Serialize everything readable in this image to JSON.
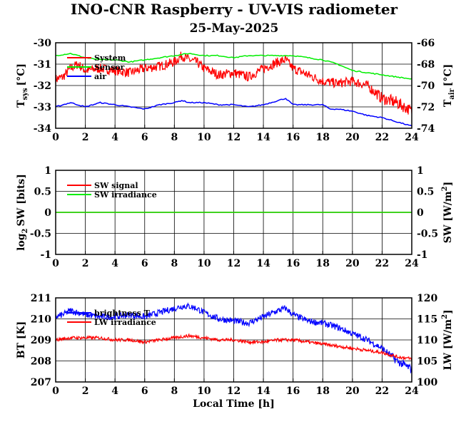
{
  "title": "INO-CNR Raspberry - UV-VIS radiometer",
  "subtitle": "25-May-2025",
  "chart_data": [
    {
      "type": "line",
      "panel": "temperature",
      "x_ticks": [
        "0",
        "2",
        "4",
        "6",
        "8",
        "10",
        "12",
        "14",
        "16",
        "18",
        "20",
        "22",
        "24"
      ],
      "xlim": [
        0,
        24
      ],
      "ylim_left": [
        -34,
        -30
      ],
      "ylim_right": [
        -74,
        -66
      ],
      "y_ticks_left": [
        "-30",
        "-31",
        "-32",
        "-33",
        "-34"
      ],
      "y_ticks_right": [
        "-66",
        "-68",
        "-70",
        "-72",
        "-74"
      ],
      "ylabel_left": "T",
      "ylabel_left_sub": "sys",
      "ylabel_left_unit": "[°C]",
      "ylabel_right": "T",
      "ylabel_right_sub": "air",
      "ylabel_right_unit": "[°C]",
      "grid": true,
      "legend_placement": "top-left",
      "legend": [
        "System",
        "Sensor",
        "air"
      ],
      "series": [
        {
          "name": "System",
          "color": "#ff0000",
          "axis": "left",
          "x": [
            0,
            0.5,
            1,
            1.5,
            2,
            3,
            4,
            5,
            6,
            7,
            8,
            8.5,
            9,
            9.5,
            10,
            11,
            12,
            13,
            14,
            15,
            15.5,
            16,
            17,
            18,
            19,
            20,
            21,
            22,
            23,
            24
          ],
          "y": [
            -31.7,
            -31.6,
            -31.2,
            -31.0,
            -31.3,
            -31.2,
            -31.3,
            -31.4,
            -31.2,
            -31.1,
            -30.9,
            -30.6,
            -30.8,
            -30.9,
            -31.2,
            -31.5,
            -31.4,
            -31.6,
            -31.2,
            -30.9,
            -30.8,
            -31.2,
            -31.5,
            -31.8,
            -31.9,
            -31.8,
            -32.0,
            -32.6,
            -32.8,
            -33.2
          ],
          "band": [
            0.45,
            0.45,
            0.45,
            0.45,
            0.45,
            0.45,
            0.45,
            0.45,
            0.45,
            0.45,
            0.45,
            0.45,
            0.45,
            0.45,
            0.45,
            0.45,
            0.45,
            0.45,
            0.45,
            0.45,
            0.45,
            0.45,
            0.45,
            0.45,
            0.45,
            0.45,
            0.45,
            0.55,
            0.6,
            0.5
          ]
        },
        {
          "name": "Sensor",
          "color": "#00ee00",
          "axis": "left",
          "x": [
            0,
            1,
            2,
            3,
            4,
            5,
            6,
            7,
            8,
            9,
            10,
            11,
            12,
            13,
            14,
            15,
            16,
            17,
            18,
            19,
            20,
            21,
            22,
            23,
            24
          ],
          "y": [
            -30.6,
            -30.5,
            -30.7,
            -30.8,
            -30.8,
            -30.9,
            -30.8,
            -30.7,
            -30.6,
            -30.5,
            -30.6,
            -30.6,
            -30.7,
            -30.6,
            -30.6,
            -30.6,
            -30.6,
            -30.7,
            -30.8,
            -31.0,
            -31.3,
            -31.4,
            -31.5,
            -31.6,
            -31.7
          ]
        },
        {
          "name": "air",
          "color": "#0000ff",
          "axis": "left",
          "x": [
            0,
            0.5,
            1,
            1.5,
            2,
            3,
            4,
            5,
            6,
            7,
            8,
            8.5,
            9,
            10,
            11,
            12,
            13,
            14,
            14.5,
            15,
            15.5,
            16,
            17,
            18,
            18.5,
            19,
            20,
            21,
            22,
            23,
            24
          ],
          "y": [
            -33.0,
            -32.9,
            -32.8,
            -32.9,
            -33.0,
            -32.8,
            -32.9,
            -33.0,
            -33.1,
            -32.9,
            -32.8,
            -32.7,
            -32.8,
            -32.8,
            -32.9,
            -32.9,
            -33.0,
            -32.9,
            -32.8,
            -32.7,
            -32.6,
            -32.9,
            -32.9,
            -32.9,
            -33.1,
            -33.1,
            -33.2,
            -33.4,
            -33.5,
            -33.7,
            -33.9
          ]
        }
      ]
    },
    {
      "type": "line",
      "panel": "shortwave",
      "x_ticks": [
        "0",
        "2",
        "4",
        "6",
        "8",
        "10",
        "12",
        "14",
        "16",
        "18",
        "20",
        "22",
        "24"
      ],
      "xlim": [
        0,
        24
      ],
      "ylim_left": [
        -1,
        1
      ],
      "ylim_right": [
        -1,
        1
      ],
      "y_ticks_left": [
        "1",
        "0.5",
        "0",
        "-0.5",
        "-1"
      ],
      "y_ticks_right": [
        "1",
        "0.5",
        "0",
        "-0.5",
        "-1"
      ],
      "ylabel_left": "log",
      "ylabel_left_sub": "2",
      "ylabel_left_unit": "SW [bits]",
      "ylabel_right": "SW [W/m",
      "ylabel_right_sup": "2",
      "ylabel_right_unit": "]",
      "grid": true,
      "legend_placement": "top-left",
      "legend": [
        "SW signal",
        "SW irradiance"
      ],
      "series": [
        {
          "name": "SW signal",
          "color": "#ff0000",
          "axis": "left",
          "x": [
            0,
            24
          ],
          "y": [
            0,
            0
          ]
        },
        {
          "name": "SW irradiance",
          "color": "#00ee00",
          "axis": "left",
          "x": [
            0,
            24
          ],
          "y": [
            0,
            0
          ]
        }
      ]
    },
    {
      "type": "line",
      "panel": "longwave",
      "x_ticks": [
        "0",
        "2",
        "4",
        "6",
        "8",
        "10",
        "12",
        "14",
        "16",
        "18",
        "20",
        "22",
        "24"
      ],
      "xlim": [
        0,
        24
      ],
      "ylim_left": [
        207,
        211
      ],
      "ylim_right": [
        100,
        120
      ],
      "y_ticks_left": [
        "211",
        "210",
        "209",
        "208",
        "207"
      ],
      "y_ticks_right": [
        "120",
        "115",
        "110",
        "105",
        "100"
      ],
      "ylabel_left": "BT [K]",
      "ylabel_right": "LW [W/m",
      "ylabel_right_sup": "2",
      "ylabel_right_unit": "]",
      "xlabel": "Local Time [h]",
      "grid": true,
      "legend_placement": "top-left",
      "legend": [
        "brightness T",
        "LW irradiance"
      ],
      "series": [
        {
          "name": "brightness T",
          "color": "#0000ff",
          "axis": "left",
          "x": [
            0,
            0.5,
            1,
            1.5,
            2,
            3,
            4,
            5,
            6,
            7,
            8,
            8.5,
            9,
            9.5,
            10,
            11,
            12,
            13,
            14,
            15,
            15.5,
            16,
            17,
            18,
            19,
            20,
            21,
            22,
            22.5,
            23,
            24
          ],
          "y": [
            210.1,
            210.2,
            210.4,
            210.3,
            210.2,
            210.1,
            210.1,
            210.2,
            210.1,
            210.3,
            210.5,
            210.6,
            210.6,
            210.5,
            210.3,
            210.0,
            209.9,
            209.8,
            210.1,
            210.4,
            210.5,
            210.2,
            209.9,
            209.8,
            209.6,
            209.3,
            209.0,
            208.6,
            208.3,
            208.0,
            207.6
          ],
          "band": [
            0.3,
            0.3,
            0.3,
            0.3,
            0.3,
            0.3,
            0.3,
            0.3,
            0.3,
            0.3,
            0.3,
            0.3,
            0.3,
            0.3,
            0.3,
            0.3,
            0.3,
            0.3,
            0.3,
            0.3,
            0.3,
            0.3,
            0.3,
            0.3,
            0.3,
            0.3,
            0.3,
            0.3,
            0.35,
            0.4,
            0.4
          ]
        },
        {
          "name": "LW irradiance",
          "color": "#ff0000",
          "axis": "left",
          "x": [
            0,
            1,
            2,
            3,
            4,
            5,
            6,
            7,
            8,
            9,
            10,
            11,
            12,
            13,
            14,
            15,
            16,
            17,
            18,
            19,
            20,
            21,
            22,
            23,
            24
          ],
          "y": [
            209.0,
            209.1,
            209.1,
            209.1,
            209.0,
            209.0,
            208.9,
            209.0,
            209.1,
            209.2,
            209.1,
            209.0,
            209.0,
            208.9,
            208.9,
            209.0,
            209.0,
            208.9,
            208.8,
            208.7,
            208.6,
            208.5,
            208.4,
            208.2,
            208.1
          ],
          "band": [
            0.15,
            0.15,
            0.15,
            0.15,
            0.15,
            0.15,
            0.15,
            0.15,
            0.15,
            0.15,
            0.15,
            0.15,
            0.15,
            0.15,
            0.15,
            0.15,
            0.15,
            0.15,
            0.15,
            0.15,
            0.15,
            0.15,
            0.15,
            0.15,
            0.15
          ]
        }
      ]
    }
  ]
}
